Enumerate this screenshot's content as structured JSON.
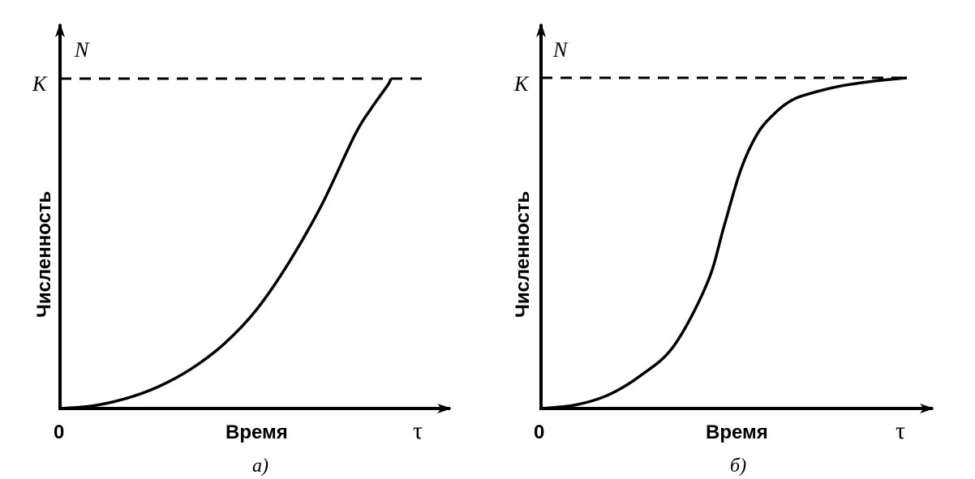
{
  "chart_data": [
    {
      "type": "line",
      "panel_label": "а)",
      "xlabel": "Время",
      "ylabel": "Численность",
      "x_axis_symbol": "τ",
      "y_axis_symbol": "N",
      "origin_label": "0",
      "capacity_label": "K",
      "capacity_line": {
        "y": 1.0,
        "style": "dashed"
      },
      "curve_shape": "exponential (J-shaped)",
      "xlim": [
        0,
        1.15
      ],
      "ylim": [
        0,
        1.1
      ],
      "series": [
        {
          "x": [
            0,
            0.1,
            0.2,
            0.3,
            0.4,
            0.5,
            0.6,
            0.7,
            0.8,
            0.9,
            0.95,
            1.0,
            1.01
          ],
          "y": [
            0,
            0.008,
            0.03,
            0.066,
            0.12,
            0.195,
            0.3,
            0.445,
            0.62,
            0.83,
            0.91,
            0.98,
            1.0
          ]
        }
      ]
    },
    {
      "type": "line",
      "panel_label": "б)",
      "xlabel": "Время",
      "ylabel": "Численность",
      "x_axis_symbol": "τ",
      "y_axis_symbol": "N",
      "origin_label": "0",
      "capacity_label": "K",
      "capacity_line": {
        "y": 1.0,
        "style": "dashed"
      },
      "curve_shape": "logistic (S-shaped)",
      "xlim": [
        0,
        1.2
      ],
      "ylim": [
        0,
        1.1
      ],
      "series": [
        {
          "x": [
            0,
            0.1,
            0.2,
            0.3,
            0.4,
            0.5,
            0.55,
            0.6,
            0.65,
            0.7,
            0.75,
            0.8,
            0.9,
            1.0,
            1.1
          ],
          "y": [
            0,
            0.01,
            0.04,
            0.1,
            0.19,
            0.38,
            0.55,
            0.72,
            0.83,
            0.89,
            0.93,
            0.95,
            0.975,
            0.99,
            1.0
          ]
        }
      ]
    }
  ]
}
